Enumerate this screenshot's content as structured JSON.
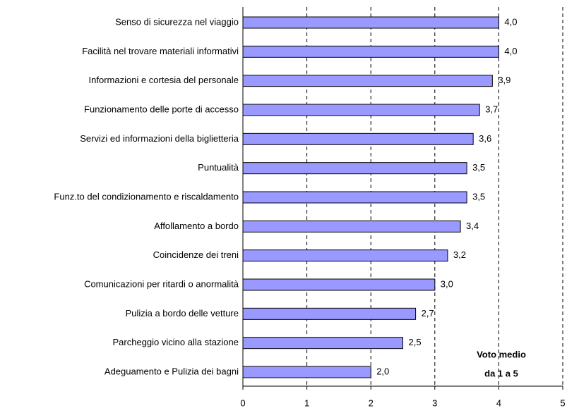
{
  "chart_data": {
    "type": "barh",
    "categories": [
      "Senso di sicurezza nel viaggio",
      "Facilità nel trovare materiali informativi",
      "Informazioni e cortesia del personale",
      "Funzionamento delle porte di accesso",
      "Servizi ed informazioni della biglietteria",
      "Puntualità",
      "Funz.to del condizionamento e riscaldamento",
      "Affollamento a bordo",
      "Coincidenze dei treni",
      "Comunicazioni per ritardi o anormalità",
      "Pulizia a bordo delle vetture",
      "Parcheggio vicino alla stazione",
      "Adeguamento e Pulizia dei bagni"
    ],
    "values": [
      4.0,
      4.0,
      3.9,
      3.7,
      3.6,
      3.5,
      3.5,
      3.4,
      3.2,
      3.0,
      2.7,
      2.5,
      2.0
    ],
    "value_labels": [
      "4,0",
      "4,0",
      "3,9",
      "3,7",
      "3,6",
      "3,5",
      "3,5",
      "3,4",
      "3,2",
      "3,0",
      "2,7",
      "2,5",
      "2,0"
    ],
    "color": "#9999ff",
    "xlim": [
      0,
      5
    ],
    "xticks": [
      0,
      1,
      2,
      3,
      4,
      5
    ],
    "grid": true,
    "annotations": [
      "Voto medio",
      "da 1 a 5"
    ]
  }
}
